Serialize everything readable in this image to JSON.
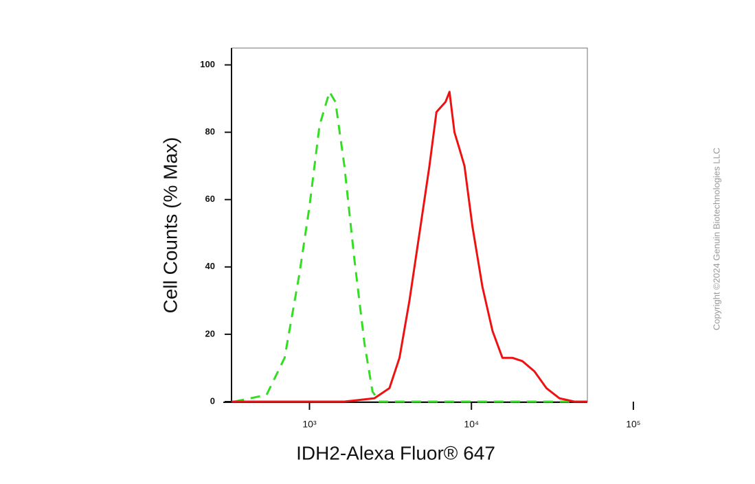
{
  "chart_data": {
    "type": "line",
    "xlabel": "IDH2-Alexa Fluor® 647",
    "ylabel": "Cell Counts (% Max)",
    "watermark": "Copyright ©2024 Genuin Biotechnologies LLC",
    "xscale": "log",
    "xlim": [
      330,
      52000
    ],
    "ylim": [
      0,
      105
    ],
    "xticks": [
      {
        "value": 1000,
        "label": "10³"
      },
      {
        "value": 10000,
        "label": "10⁴"
      },
      {
        "value": 100000,
        "label": "10⁵"
      }
    ],
    "yticks": [
      0,
      20,
      40,
      60,
      80,
      100
    ],
    "series": [
      {
        "color": "#33dd22",
        "dash": "dashed",
        "x": [
          344,
          543,
          702,
          867,
          1000,
          1153,
          1329,
          1447,
          1643,
          1896,
          2188,
          2450,
          2706,
          52000
        ],
        "values": [
          0,
          2,
          13,
          38,
          58,
          82,
          92,
          89,
          70,
          42,
          17,
          3,
          0,
          0
        ]
      },
      {
        "color": "#ee1111",
        "dash": "solid",
        "x": [
          330,
          1643,
          2518,
          3118,
          3597,
          4144,
          4776,
          5506,
          6083,
          6626,
          6918,
          7318,
          7857,
          8440,
          9060,
          10150,
          11700,
          13490,
          15530,
          17900,
          20650,
          24490,
          29040,
          34910,
          43250,
          52000
        ],
        "values": [
          0,
          0,
          1,
          4,
          13,
          30,
          50,
          70,
          86,
          88,
          89,
          92,
          80,
          75,
          70,
          52,
          34,
          21,
          13,
          13,
          12,
          9,
          4,
          1,
          0,
          0
        ]
      }
    ]
  }
}
